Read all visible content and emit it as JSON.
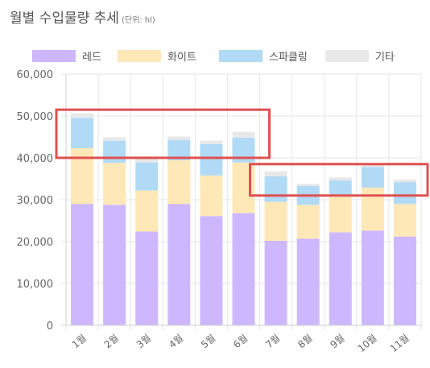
{
  "header": {
    "title": "월별 수입물량 추세",
    "subtitle": "(단위: hl)"
  },
  "chart_data": {
    "type": "bar",
    "stacked": true,
    "categories": [
      "1월",
      "2월",
      "3월",
      "4월",
      "5월",
      "6월",
      "7월",
      "8월",
      "9월",
      "10월",
      "11월"
    ],
    "series": [
      {
        "name": "레드",
        "color": "#cdb8ff",
        "values": [
          29000,
          28800,
          22400,
          29000,
          26100,
          26800,
          20200,
          20700,
          22200,
          22600,
          21200
        ]
      },
      {
        "name": "화이트",
        "color": "#ffe8b8",
        "values": [
          13300,
          10000,
          9800,
          10400,
          9700,
          12100,
          9300,
          8100,
          8900,
          10300,
          7800
        ]
      },
      {
        "name": "스파클링",
        "color": "#b0daf6",
        "values": [
          7200,
          5300,
          6700,
          4900,
          7500,
          5900,
          6100,
          4500,
          3500,
          4900,
          5200
        ]
      },
      {
        "name": "기타",
        "color": "#e8e8e8",
        "values": [
          1100,
          800,
          1000,
          800,
          800,
          1400,
          1200,
          500,
          700,
          700,
          600
        ]
      }
    ],
    "ylim": [
      0,
      60000
    ],
    "yticks": [
      "0",
      "10,000",
      "20,000",
      "30,000",
      "40,000",
      "50,000",
      "60,000"
    ],
    "grid": true,
    "legend_position": "top",
    "annotations": [
      {
        "type": "highlight-box",
        "color": "#e05050",
        "categories": [
          "1월",
          "6월"
        ],
        "range": [
          40000,
          51500
        ]
      },
      {
        "type": "highlight-box",
        "color": "#e05050",
        "categories": [
          "7월",
          "11월"
        ],
        "range": [
          31000,
          38500
        ]
      }
    ]
  }
}
